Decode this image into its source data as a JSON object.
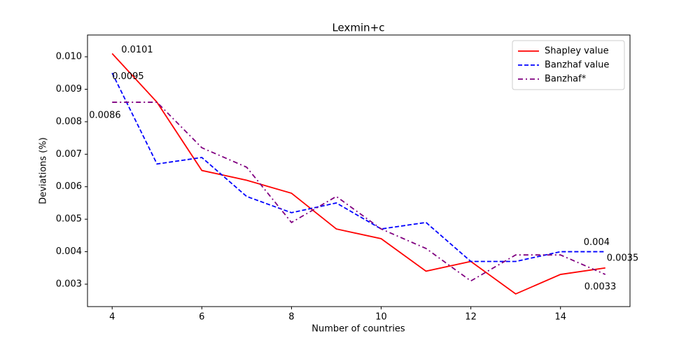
{
  "chart_data": {
    "type": "line",
    "title": "Lexmin+c",
    "x_label": "Number of countries",
    "y_label": "Deviations (%)",
    "x": [
      4,
      5,
      6,
      7,
      8,
      9,
      10,
      11,
      12,
      13,
      14,
      15
    ],
    "series": [
      {
        "name": "Shapley value",
        "color": "#ff0000",
        "dash": "solid",
        "values": [
          0.0101,
          0.0086,
          0.0065,
          0.0062,
          0.0058,
          0.0047,
          0.0044,
          0.0034,
          0.0037,
          0.0027,
          0.0033,
          0.0035
        ],
        "value_labels": [
          "0.0101",
          null,
          null,
          null,
          null,
          null,
          null,
          null,
          null,
          null,
          null,
          "0.0035"
        ]
      },
      {
        "name": "Banzhaf value",
        "color": "#0000ff",
        "dash": "dashed",
        "values": [
          0.0095,
          0.0067,
          0.0069,
          0.0057,
          0.0052,
          0.0055,
          0.0047,
          0.0049,
          0.0037,
          0.0037,
          0.004,
          0.004
        ],
        "value_labels": [
          "0.0095",
          null,
          null,
          null,
          null,
          null,
          null,
          null,
          null,
          null,
          null,
          "0.004"
        ]
      },
      {
        "name": "Banzhaf*",
        "color": "#800080",
        "dash": "dashdot",
        "values": [
          0.0086,
          0.0086,
          0.0072,
          0.0066,
          0.0049,
          0.0057,
          0.0047,
          0.0041,
          0.0031,
          0.0039,
          0.0039,
          0.0033
        ],
        "value_labels": [
          "0.0086",
          null,
          null,
          null,
          null,
          null,
          null,
          null,
          null,
          null,
          null,
          "0.0033"
        ]
      }
    ],
    "xlim": [
      3.45,
      15.55
    ],
    "xticks": [
      4,
      6,
      8,
      10,
      12,
      14
    ],
    "ylim": [
      0.00231,
      0.01067
    ],
    "yticks": [
      0.003,
      0.004,
      0.005,
      0.006,
      0.007,
      0.008,
      0.009,
      {
        "value": 0.01,
        "label": "0.010"
      }
    ],
    "legend": "upper right"
  }
}
